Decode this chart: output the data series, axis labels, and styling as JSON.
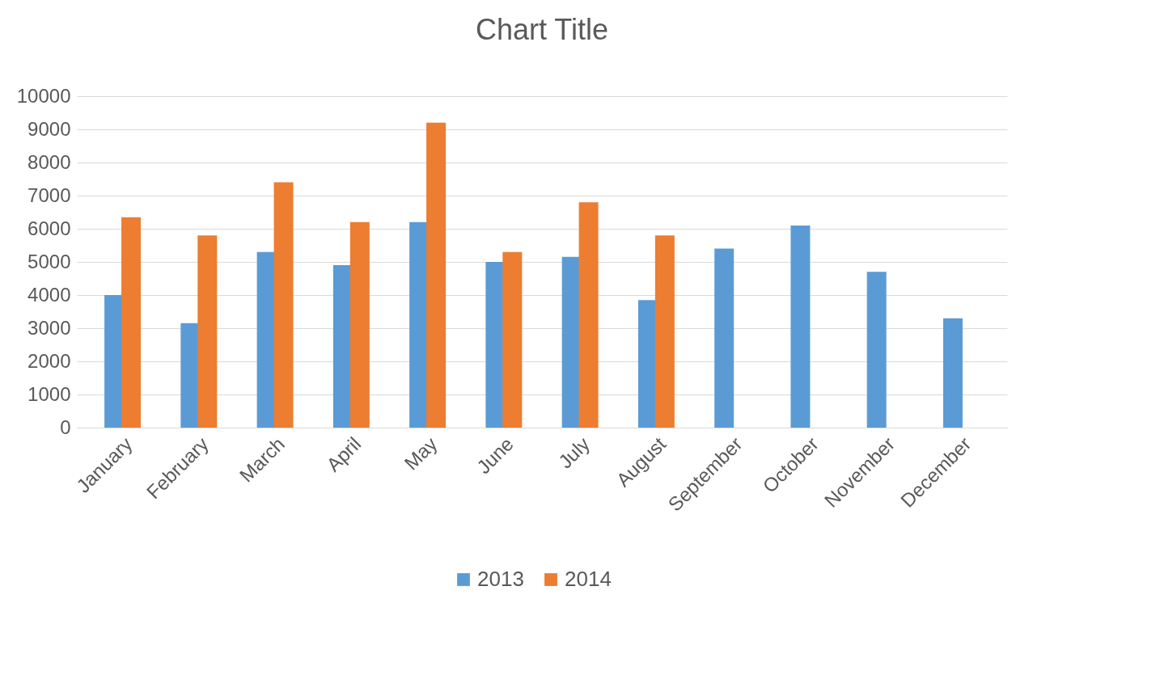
{
  "chart_data": {
    "type": "bar",
    "title": "Chart Title",
    "categories": [
      "January",
      "February",
      "March",
      "April",
      "May",
      "June",
      "July",
      "August",
      "September",
      "October",
      "November",
      "December"
    ],
    "series": [
      {
        "name": "2013",
        "color": "#5b9bd5",
        "values": [
          4000,
          3150,
          5300,
          4900,
          6200,
          5000,
          5150,
          3850,
          5400,
          6100,
          4700,
          3300
        ]
      },
      {
        "name": "2014",
        "color": "#ed7d31",
        "values": [
          6350,
          5800,
          7400,
          6200,
          9200,
          5300,
          6800,
          5800,
          null,
          null,
          null,
          null
        ]
      }
    ],
    "ylim": [
      0,
      10000
    ],
    "yticks": [
      0,
      1000,
      2000,
      3000,
      4000,
      5000,
      6000,
      7000,
      8000,
      9000,
      10000
    ],
    "grid": "y",
    "legend": "bottom"
  }
}
